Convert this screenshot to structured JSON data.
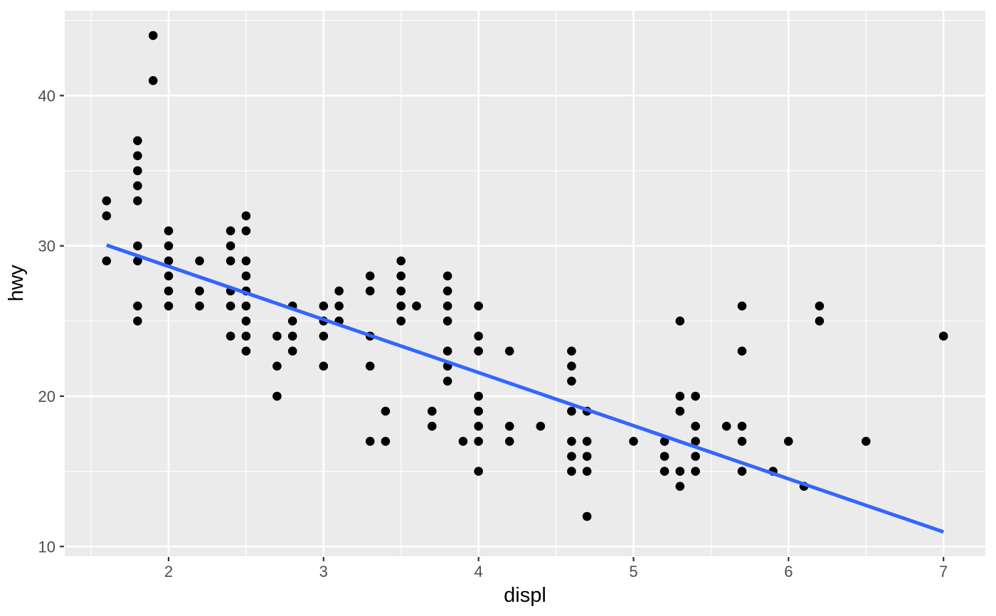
{
  "chart_data": {
    "type": "scatter",
    "title": "",
    "xlabel": "displ",
    "ylabel": "hwy",
    "x_ticks": [
      2,
      3,
      4,
      5,
      6,
      7
    ],
    "x_tick_labels": [
      "2",
      "3",
      "4",
      "5",
      "6",
      "7"
    ],
    "y_ticks": [
      10,
      20,
      30,
      40
    ],
    "y_tick_labels": [
      "10",
      "20",
      "30",
      "40"
    ],
    "x_minor_ticks": [
      1.5,
      2.5,
      3.5,
      4.5,
      5.5,
      6.5
    ],
    "y_minor_ticks": [
      15,
      25,
      35,
      45
    ],
    "xlim": [
      1.33,
      7.27
    ],
    "ylim": [
      9.35,
      45.65
    ],
    "grid": "major and minor white gridlines on grey panel (ggplot2 theme_grey)",
    "legend_position": "none",
    "points": [
      [
        1.6,
        29
      ],
      [
        1.6,
        32
      ],
      [
        1.6,
        33
      ],
      [
        1.8,
        25
      ],
      [
        1.8,
        26
      ],
      [
        1.8,
        29
      ],
      [
        1.8,
        30
      ],
      [
        1.8,
        33
      ],
      [
        1.8,
        34
      ],
      [
        1.8,
        35
      ],
      [
        1.8,
        36
      ],
      [
        1.8,
        37
      ],
      [
        1.9,
        41
      ],
      [
        1.9,
        44
      ],
      [
        2.0,
        26
      ],
      [
        2.0,
        27
      ],
      [
        2.0,
        28
      ],
      [
        2.0,
        29
      ],
      [
        2.0,
        30
      ],
      [
        2.0,
        31
      ],
      [
        2.2,
        26
      ],
      [
        2.2,
        27
      ],
      [
        2.2,
        29
      ],
      [
        2.4,
        24
      ],
      [
        2.4,
        26
      ],
      [
        2.4,
        27
      ],
      [
        2.4,
        29
      ],
      [
        2.4,
        30
      ],
      [
        2.4,
        31
      ],
      [
        2.5,
        23
      ],
      [
        2.5,
        24
      ],
      [
        2.5,
        25
      ],
      [
        2.5,
        26
      ],
      [
        2.5,
        27
      ],
      [
        2.5,
        28
      ],
      [
        2.5,
        29
      ],
      [
        2.5,
        31
      ],
      [
        2.5,
        32
      ],
      [
        2.7,
        20
      ],
      [
        2.7,
        22
      ],
      [
        2.7,
        24
      ],
      [
        2.8,
        23
      ],
      [
        2.8,
        24
      ],
      [
        2.8,
        25
      ],
      [
        2.8,
        26
      ],
      [
        3.0,
        22
      ],
      [
        3.0,
        24
      ],
      [
        3.0,
        25
      ],
      [
        3.0,
        26
      ],
      [
        3.1,
        25
      ],
      [
        3.1,
        26
      ],
      [
        3.1,
        27
      ],
      [
        3.3,
        17
      ],
      [
        3.3,
        22
      ],
      [
        3.3,
        24
      ],
      [
        3.3,
        27
      ],
      [
        3.3,
        28
      ],
      [
        3.4,
        17
      ],
      [
        3.4,
        19
      ],
      [
        3.5,
        25
      ],
      [
        3.5,
        26
      ],
      [
        3.5,
        27
      ],
      [
        3.5,
        28
      ],
      [
        3.5,
        29
      ],
      [
        3.6,
        26
      ],
      [
        3.7,
        18
      ],
      [
        3.7,
        19
      ],
      [
        3.8,
        21
      ],
      [
        3.8,
        22
      ],
      [
        3.8,
        23
      ],
      [
        3.8,
        25
      ],
      [
        3.8,
        26
      ],
      [
        3.8,
        27
      ],
      [
        3.8,
        28
      ],
      [
        3.9,
        17
      ],
      [
        4.0,
        15
      ],
      [
        4.0,
        17
      ],
      [
        4.0,
        18
      ],
      [
        4.0,
        19
      ],
      [
        4.0,
        20
      ],
      [
        4.0,
        23
      ],
      [
        4.0,
        24
      ],
      [
        4.0,
        26
      ],
      [
        4.2,
        17
      ],
      [
        4.2,
        18
      ],
      [
        4.2,
        23
      ],
      [
        4.4,
        18
      ],
      [
        4.6,
        15
      ],
      [
        4.6,
        16
      ],
      [
        4.6,
        17
      ],
      [
        4.6,
        19
      ],
      [
        4.6,
        21
      ],
      [
        4.6,
        22
      ],
      [
        4.6,
        23
      ],
      [
        4.7,
        12
      ],
      [
        4.7,
        15
      ],
      [
        4.7,
        16
      ],
      [
        4.7,
        17
      ],
      [
        4.7,
        19
      ],
      [
        5.0,
        17
      ],
      [
        5.2,
        15
      ],
      [
        5.2,
        16
      ],
      [
        5.2,
        17
      ],
      [
        5.3,
        14
      ],
      [
        5.3,
        15
      ],
      [
        5.3,
        19
      ],
      [
        5.3,
        20
      ],
      [
        5.3,
        25
      ],
      [
        5.4,
        15
      ],
      [
        5.4,
        16
      ],
      [
        5.4,
        17
      ],
      [
        5.4,
        18
      ],
      [
        5.4,
        20
      ],
      [
        5.6,
        18
      ],
      [
        5.7,
        15
      ],
      [
        5.7,
        17
      ],
      [
        5.7,
        18
      ],
      [
        5.7,
        23
      ],
      [
        5.7,
        26
      ],
      [
        5.9,
        15
      ],
      [
        6.0,
        17
      ],
      [
        6.1,
        14
      ],
      [
        6.2,
        25
      ],
      [
        6.2,
        26
      ],
      [
        6.5,
        17
      ],
      [
        7.0,
        24
      ]
    ],
    "smooth_line": {
      "model": "linear regression (lm), no confidence band",
      "intercept": 35.7,
      "slope": -3.53,
      "x_start": 1.6,
      "y_start": 30.05,
      "x_end": 7.0,
      "y_end": 10.97
    }
  },
  "style": {
    "outer_bg": "#FFFFFF",
    "panel_bg": "#EBEBEB",
    "grid_color": "#FFFFFF",
    "point_color": "#000000",
    "smooth_line_color": "#3366FF",
    "tick_label_color": "#4D4D4D",
    "tick_mark_color": "#333333",
    "axis_title_color": "#000000"
  }
}
